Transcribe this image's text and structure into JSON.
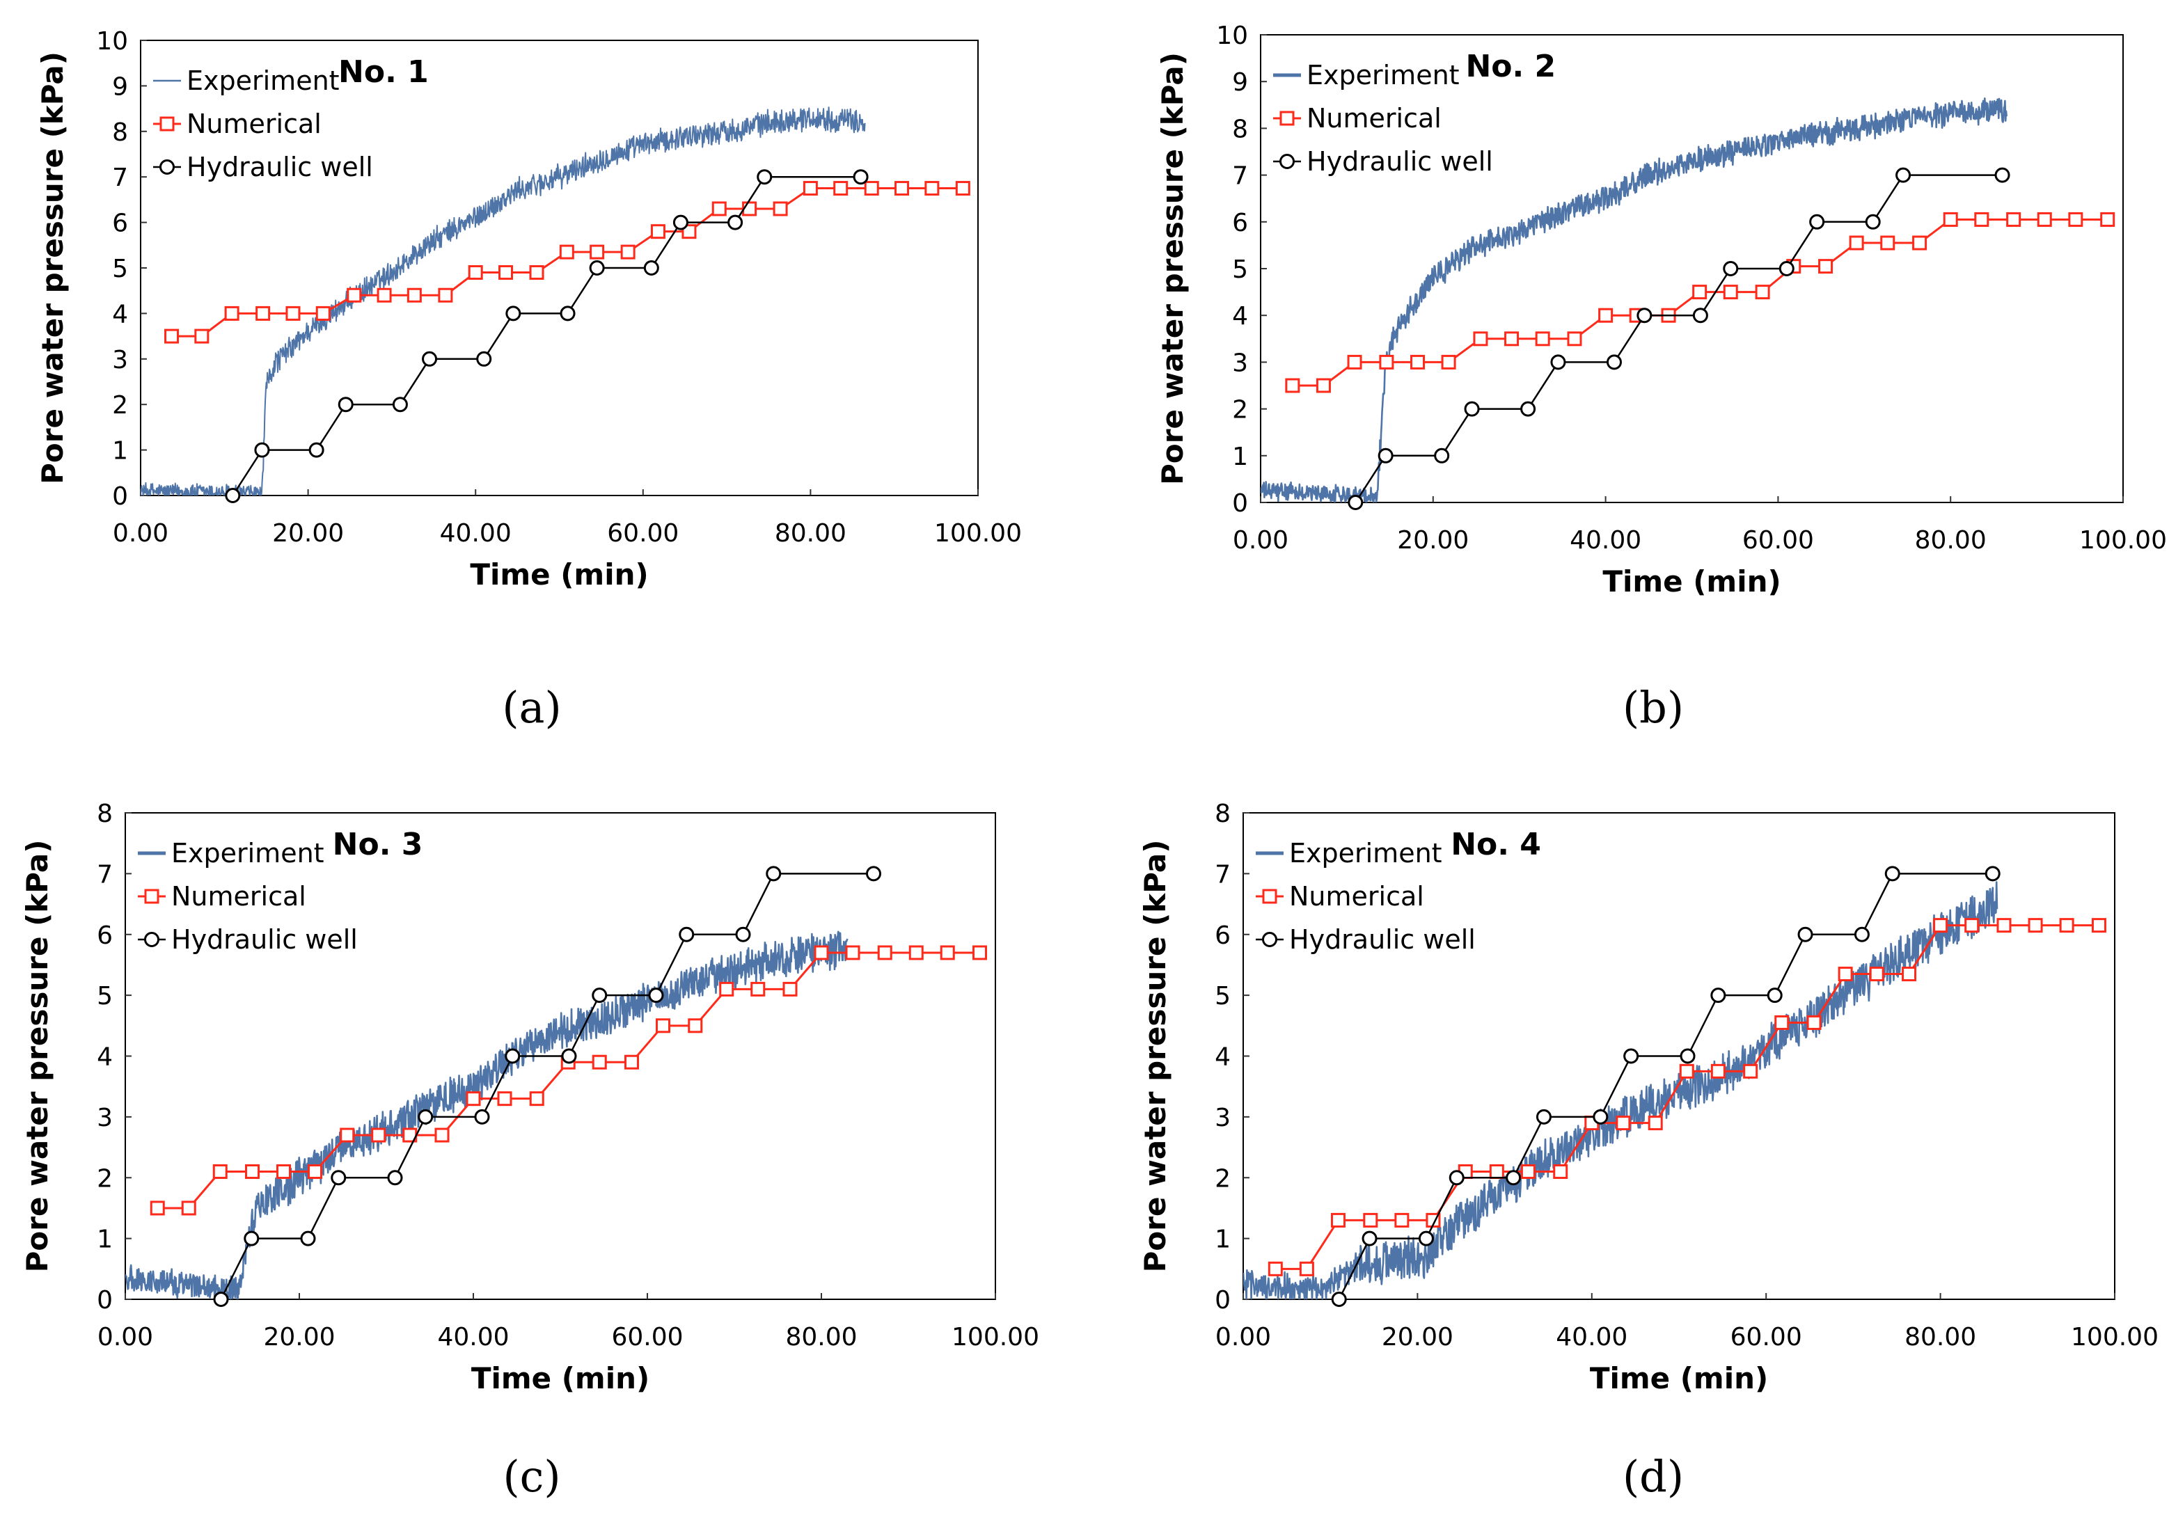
{
  "colors": {
    "experiment": "#4f75a8",
    "experiment_light": "#5b86be",
    "numerical": "#ff2a1a",
    "hydraulic": "#000000",
    "axis": "#333333",
    "text": "#000000",
    "frame": "#000000"
  },
  "chart_data": [
    {
      "id": "a",
      "type": "line",
      "caption": "(a)",
      "title": "No. 1",
      "xlabel": "Time (min)",
      "ylabel": "Pore water pressure (kPa)",
      "xlim": [
        0,
        100
      ],
      "ylim": [
        0,
        10
      ],
      "xticks": [
        0,
        20,
        40,
        60,
        80,
        100
      ],
      "xtick_labels": [
        "0.00",
        "20.00",
        "40.00",
        "60.00",
        "80.00",
        "100.00"
      ],
      "yticks": [
        0,
        1,
        2,
        3,
        4,
        5,
        6,
        7,
        8,
        9,
        10
      ],
      "ytick_labels": [
        "0",
        "1",
        "2",
        "3",
        "4",
        "5",
        "6",
        "7",
        "8",
        "9",
        "10"
      ],
      "grid": false,
      "legend": "top-left",
      "legend_entries": [
        "Experiment",
        "Numerical",
        "Hydraulic well"
      ],
      "experiment_style": "thin",
      "series": [
        {
          "name": "Experiment",
          "kind": "noisy",
          "start": 0,
          "end": 86.5,
          "noise": 0.3,
          "points": [
            [
              0,
              0.1
            ],
            [
              14.5,
              0.05
            ],
            [
              15,
              2.4
            ],
            [
              16,
              2.9
            ],
            [
              20,
              3.6
            ],
            [
              25,
              4.3
            ],
            [
              30,
              4.9
            ],
            [
              35,
              5.6
            ],
            [
              40,
              6.1
            ],
            [
              45,
              6.7
            ],
            [
              50,
              7.0
            ],
            [
              55,
              7.4
            ],
            [
              60,
              7.7
            ],
            [
              65,
              7.9
            ],
            [
              70,
              8.0
            ],
            [
              75,
              8.2
            ],
            [
              80,
              8.3
            ],
            [
              86.5,
              8.2
            ]
          ]
        },
        {
          "name": "Numerical",
          "kind": "step",
          "x": [
            3.7,
            7.3,
            10.9,
            14.6,
            18.2,
            21.8,
            25.5,
            29.1,
            32.7,
            36.4,
            40,
            43.6,
            47.3,
            50.9,
            54.5,
            58.2,
            61.8,
            65.5,
            69.1,
            72.7,
            76.4,
            80,
            83.6,
            87.3,
            90.9,
            94.5,
            98.2
          ],
          "y": [
            3.5,
            3.5,
            4.0,
            4.0,
            4.0,
            4.0,
            4.4,
            4.4,
            4.4,
            4.4,
            4.9,
            4.9,
            4.9,
            5.35,
            5.35,
            5.35,
            5.8,
            5.8,
            6.3,
            6.3,
            6.3,
            6.75,
            6.75,
            6.75,
            6.75,
            6.75,
            6.75
          ]
        },
        {
          "name": "Hydraulic well",
          "kind": "step",
          "x": [
            11,
            14.5,
            21,
            24.5,
            31,
            34.5,
            41,
            44.5,
            51,
            54.5,
            61,
            64.5,
            71,
            74.5,
            86
          ],
          "y": [
            0,
            1,
            1,
            2,
            2,
            3,
            3,
            4,
            4,
            5,
            5,
            6,
            6,
            7,
            7
          ]
        }
      ]
    },
    {
      "id": "b",
      "type": "line",
      "caption": "(b)",
      "title": "No. 2",
      "xlabel": "Time (min)",
      "ylabel": "Pore water pressure (kPa)",
      "xlim": [
        0,
        100
      ],
      "ylim": [
        0,
        10
      ],
      "xticks": [
        0,
        20,
        40,
        60,
        80,
        100
      ],
      "xtick_labels": [
        "0.00",
        "20.00",
        "40.00",
        "60.00",
        "80.00",
        "100.00"
      ],
      "yticks": [
        0,
        1,
        2,
        3,
        4,
        5,
        6,
        7,
        8,
        9,
        10
      ],
      "ytick_labels": [
        "0",
        "1",
        "2",
        "3",
        "4",
        "5",
        "6",
        "7",
        "8",
        "9",
        "10"
      ],
      "grid": false,
      "legend": "top-left",
      "legend_entries": [
        "Experiment",
        "Numerical",
        "Hydraulic well"
      ],
      "experiment_style": "thick",
      "series": [
        {
          "name": "Experiment",
          "kind": "noisy",
          "start": 0,
          "end": 86.5,
          "noise": 0.3,
          "points": [
            [
              0,
              0.25
            ],
            [
              13.5,
              0.15
            ],
            [
              14.5,
              3.0
            ],
            [
              16,
              3.8
            ],
            [
              20,
              4.8
            ],
            [
              25,
              5.5
            ],
            [
              30,
              5.8
            ],
            [
              35,
              6.2
            ],
            [
              40,
              6.5
            ],
            [
              45,
              7.0
            ],
            [
              50,
              7.3
            ],
            [
              55,
              7.5
            ],
            [
              60,
              7.7
            ],
            [
              65,
              7.9
            ],
            [
              70,
              8.0
            ],
            [
              75,
              8.2
            ],
            [
              80,
              8.3
            ],
            [
              86.5,
              8.4
            ]
          ]
        },
        {
          "name": "Numerical",
          "kind": "step",
          "x": [
            3.7,
            7.3,
            10.9,
            14.6,
            18.2,
            21.8,
            25.5,
            29.1,
            32.7,
            36.4,
            40,
            43.6,
            47.3,
            50.9,
            54.5,
            58.2,
            61.8,
            65.5,
            69.1,
            72.7,
            76.4,
            80,
            83.6,
            87.3,
            90.9,
            94.5,
            98.2
          ],
          "y": [
            2.5,
            2.5,
            3.0,
            3.0,
            3.0,
            3.0,
            3.5,
            3.5,
            3.5,
            3.5,
            4.0,
            4.0,
            4.0,
            4.5,
            4.5,
            4.5,
            5.05,
            5.05,
            5.55,
            5.55,
            5.55,
            6.05,
            6.05,
            6.05,
            6.05,
            6.05,
            6.05
          ]
        },
        {
          "name": "Hydraulic well",
          "kind": "step",
          "x": [
            11,
            14.5,
            21,
            24.5,
            31,
            34.5,
            41,
            44.5,
            51,
            54.5,
            61,
            64.5,
            71,
            74.5,
            86
          ],
          "y": [
            0,
            1,
            1,
            2,
            2,
            3,
            3,
            4,
            4,
            5,
            5,
            6,
            6,
            7,
            7
          ]
        }
      ]
    },
    {
      "id": "c",
      "type": "line",
      "caption": "(c)",
      "title": "No. 3",
      "xlabel": "Time (min)",
      "ylabel": "Pore water pressure (kPa)",
      "xlim": [
        0,
        100
      ],
      "ylim": [
        0,
        8
      ],
      "xticks": [
        0,
        20,
        40,
        60,
        80,
        100
      ],
      "xtick_labels": [
        "0.00",
        "20.00",
        "40.00",
        "60.00",
        "80.00",
        "100.00"
      ],
      "yticks": [
        0,
        1,
        2,
        3,
        4,
        5,
        6,
        7,
        8
      ],
      "ytick_labels": [
        "0",
        "1",
        "2",
        "3",
        "4",
        "5",
        "6",
        "7",
        "8"
      ],
      "grid": false,
      "legend": "top-left",
      "legend_entries": [
        "Experiment",
        "Numerical",
        "Hydraulic well"
      ],
      "experiment_style": "thick",
      "series": [
        {
          "name": "Experiment",
          "kind": "noisy",
          "start": 0,
          "end": 83,
          "noise": 0.35,
          "points": [
            [
              0,
              0.35
            ],
            [
              13,
              0.15
            ],
            [
              15,
              1.5
            ],
            [
              20,
              2.0
            ],
            [
              25,
              2.5
            ],
            [
              30,
              2.8
            ],
            [
              35,
              3.2
            ],
            [
              40,
              3.5
            ],
            [
              45,
              4.0
            ],
            [
              50,
              4.4
            ],
            [
              55,
              4.6
            ],
            [
              60,
              4.9
            ],
            [
              65,
              5.2
            ],
            [
              70,
              5.4
            ],
            [
              75,
              5.6
            ],
            [
              80,
              5.7
            ],
            [
              83,
              5.8
            ]
          ]
        },
        {
          "name": "Numerical",
          "kind": "step",
          "x": [
            3.7,
            7.3,
            10.9,
            14.6,
            18.2,
            21.8,
            25.5,
            29.1,
            32.7,
            36.4,
            40,
            43.6,
            47.3,
            50.9,
            54.5,
            58.2,
            61.8,
            65.5,
            69.1,
            72.7,
            76.4,
            80,
            83.6,
            87.3,
            90.9,
            94.5,
            98.2
          ],
          "y": [
            1.5,
            1.5,
            2.1,
            2.1,
            2.1,
            2.1,
            2.7,
            2.7,
            2.7,
            2.7,
            3.3,
            3.3,
            3.3,
            3.9,
            3.9,
            3.9,
            4.5,
            4.5,
            5.1,
            5.1,
            5.1,
            5.7,
            5.7,
            5.7,
            5.7,
            5.7,
            5.7
          ]
        },
        {
          "name": "Hydraulic well",
          "kind": "step",
          "x": [
            11,
            14.5,
            21,
            24.5,
            31,
            34.5,
            41,
            44.5,
            51,
            54.5,
            61,
            64.5,
            71,
            74.5,
            86
          ],
          "y": [
            0,
            1,
            1,
            2,
            2,
            3,
            3,
            4,
            4,
            5,
            5,
            6,
            6,
            7,
            7
          ]
        }
      ]
    },
    {
      "id": "d",
      "type": "line",
      "caption": "(d)",
      "title": "No. 4",
      "xlabel": "Time (min)",
      "ylabel": "Pore water pressure (kPa)",
      "xlim": [
        0,
        100
      ],
      "ylim": [
        0,
        8
      ],
      "xticks": [
        0,
        20,
        40,
        60,
        80,
        100
      ],
      "xtick_labels": [
        "0.00",
        "20.00",
        "40.00",
        "60.00",
        "80.00",
        "100.00"
      ],
      "yticks": [
        0,
        1,
        2,
        3,
        4,
        5,
        6,
        7,
        8
      ],
      "ytick_labels": [
        "0",
        "1",
        "2",
        "3",
        "4",
        "5",
        "6",
        "7",
        "8"
      ],
      "grid": false,
      "legend": "top-left",
      "legend_entries": [
        "Experiment",
        "Numerical",
        "Hydraulic well"
      ],
      "experiment_style": "thick",
      "series": [
        {
          "name": "Experiment",
          "kind": "noisy",
          "start": 0,
          "end": 86.5,
          "noise": 0.4,
          "points": [
            [
              0,
              0.25
            ],
            [
              9,
              0.15
            ],
            [
              14,
              0.6
            ],
            [
              21,
              0.7
            ],
            [
              25,
              1.3
            ],
            [
              30,
              1.8
            ],
            [
              35,
              2.3
            ],
            [
              40,
              2.7
            ],
            [
              45,
              3.1
            ],
            [
              50,
              3.4
            ],
            [
              55,
              3.7
            ],
            [
              60,
              4.1
            ],
            [
              65,
              4.6
            ],
            [
              70,
              5.1
            ],
            [
              75,
              5.6
            ],
            [
              80,
              6.0
            ],
            [
              86.5,
              6.5
            ]
          ]
        },
        {
          "name": "Numerical",
          "kind": "step",
          "x": [
            3.7,
            7.3,
            10.9,
            14.6,
            18.2,
            21.8,
            25.5,
            29.1,
            32.7,
            36.4,
            40,
            43.6,
            47.3,
            50.9,
            54.5,
            58.2,
            61.8,
            65.5,
            69.1,
            72.7,
            76.4,
            80,
            83.6,
            87.3,
            90.9,
            94.5,
            98.2
          ],
          "y": [
            0.5,
            0.5,
            1.3,
            1.3,
            1.3,
            1.3,
            2.1,
            2.1,
            2.1,
            2.1,
            2.9,
            2.9,
            2.9,
            3.75,
            3.75,
            3.75,
            4.55,
            4.55,
            5.35,
            5.35,
            5.35,
            6.15,
            6.15,
            6.15,
            6.15,
            6.15,
            6.15
          ]
        },
        {
          "name": "Hydraulic well",
          "kind": "step",
          "x": [
            11,
            14.5,
            21,
            24.5,
            31,
            34.5,
            41,
            44.5,
            51,
            54.5,
            61,
            64.5,
            71,
            74.5,
            86
          ],
          "y": [
            0,
            1,
            1,
            2,
            2,
            3,
            3,
            4,
            4,
            5,
            5,
            6,
            6,
            7,
            7
          ]
        }
      ]
    }
  ]
}
